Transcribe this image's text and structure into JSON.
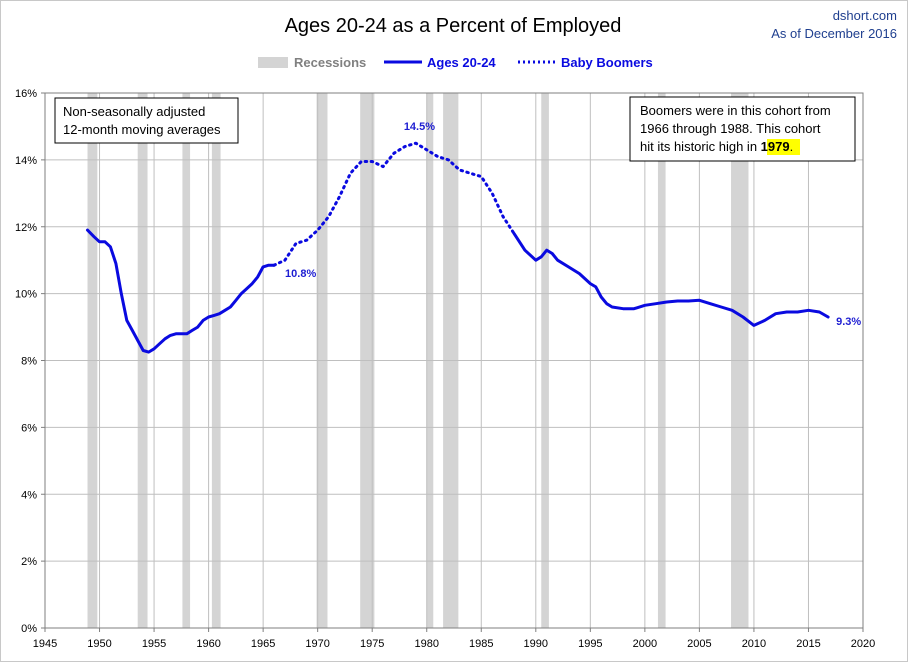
{
  "title": "Ages 20-24 as a Percent of Employed",
  "source": "dshort.com",
  "as_of": "As of December 2016",
  "legend": {
    "recessions": "Recessions",
    "series_a": "Ages 20-24",
    "series_b": "Baby Boomers"
  },
  "note_left": [
    "Non-seasonally adjusted",
    "12-month moving averages"
  ],
  "note_right": {
    "line1": "Boomers were in this cohort from",
    "line2": "1966  through 1988.  This cohort",
    "line3_prefix": "hit its historic high in ",
    "line3_highlight": "1979",
    "line3_suffix": "."
  },
  "colors": {
    "series": "#0a0ae0",
    "label": "#1e1ed2",
    "recession": "#d4d4d4",
    "grid": "#bfbfbf",
    "legend_recession_text": "#808080",
    "highlight": "#ffff00"
  },
  "chart_data": {
    "type": "line",
    "title": "Ages 20-24 as a Percent of Employed",
    "xlabel": "",
    "ylabel": "",
    "xlim": [
      1945,
      2020
    ],
    "ylim": [
      0,
      16
    ],
    "x_ticks": [
      1945,
      1950,
      1955,
      1960,
      1965,
      1970,
      1975,
      1980,
      1985,
      1990,
      1995,
      2000,
      2005,
      2010,
      2015,
      2020
    ],
    "y_ticks": [
      "0%",
      "2%",
      "4%",
      "6%",
      "8%",
      "10%",
      "12%",
      "14%",
      "16%"
    ],
    "grid": true,
    "legend_position": "top-center",
    "recessions": [
      [
        1948.9,
        1949.8
      ],
      [
        1953.5,
        1954.4
      ],
      [
        1957.6,
        1958.3
      ],
      [
        1960.3,
        1961.1
      ],
      [
        1969.9,
        1970.9
      ],
      [
        1973.9,
        1975.2
      ],
      [
        1980.0,
        1980.6
      ],
      [
        1981.5,
        1982.9
      ],
      [
        1990.5,
        1991.2
      ],
      [
        2001.2,
        2001.9
      ],
      [
        2007.9,
        2009.5
      ]
    ],
    "series": [
      {
        "name": "Ages 20-24",
        "style": "solid",
        "x": [
          1948.9,
          1949.5,
          1950,
          1950.5,
          1951,
          1951.5,
          1952,
          1952.5,
          1953,
          1953.5,
          1954,
          1954.5,
          1955,
          1955.5,
          1956,
          1956.5,
          1957,
          1957.5,
          1958,
          1958.5,
          1959,
          1959.5,
          1960,
          1960.5,
          1961,
          1961.5,
          1962,
          1962.5,
          1963,
          1963.5,
          1964,
          1964.5,
          1965,
          1965.5,
          1966
        ],
        "values": [
          11.9,
          11.7,
          11.55,
          11.55,
          11.4,
          10.9,
          10.0,
          9.2,
          8.9,
          8.6,
          8.3,
          8.25,
          8.35,
          8.5,
          8.65,
          8.75,
          8.8,
          8.8,
          8.8,
          8.9,
          9.0,
          9.2,
          9.3,
          9.35,
          9.4,
          9.5,
          9.6,
          9.8,
          10.0,
          10.15,
          10.3,
          10.5,
          10.8,
          10.85,
          10.85
        ]
      },
      {
        "name": "Baby Boomers",
        "style": "dotted",
        "x": [
          1966,
          1967,
          1968,
          1969,
          1970,
          1971,
          1972,
          1973,
          1974,
          1975,
          1976,
          1977,
          1978,
          1979,
          1980,
          1981,
          1982,
          1983,
          1984,
          1985,
          1986,
          1987,
          1988
        ],
        "values": [
          10.85,
          11.0,
          11.5,
          11.6,
          11.9,
          12.3,
          12.9,
          13.6,
          13.95,
          13.95,
          13.8,
          14.2,
          14.4,
          14.5,
          14.3,
          14.1,
          14.0,
          13.7,
          13.6,
          13.5,
          13.0,
          12.3,
          11.8
        ]
      },
      {
        "name": "Ages 20-24",
        "style": "solid",
        "x": [
          1988,
          1989,
          1990,
          1990.5,
          1991,
          1991.5,
          1992,
          1993,
          1994,
          1995,
          1995.5,
          1996,
          1996.5,
          1997,
          1998,
          1999,
          2000,
          2001,
          2002,
          2003,
          2004,
          2005,
          2006,
          2007,
          2008,
          2009,
          2010,
          2011,
          2012,
          2013,
          2014,
          2015,
          2016,
          2016.8
        ],
        "values": [
          11.8,
          11.3,
          11.0,
          11.1,
          11.3,
          11.2,
          11.0,
          10.8,
          10.6,
          10.3,
          10.2,
          9.9,
          9.7,
          9.6,
          9.55,
          9.55,
          9.65,
          9.7,
          9.75,
          9.78,
          9.78,
          9.8,
          9.7,
          9.6,
          9.5,
          9.3,
          9.05,
          9.2,
          9.4,
          9.45,
          9.45,
          9.5,
          9.45,
          9.3
        ]
      }
    ],
    "annotations": [
      {
        "text": "10.8%",
        "x": 1966,
        "y": 10.8
      },
      {
        "text": "14.5%",
        "x": 1979,
        "y": 14.5
      },
      {
        "text": "9.3%",
        "x": 2016.8,
        "y": 9.3
      }
    ]
  }
}
